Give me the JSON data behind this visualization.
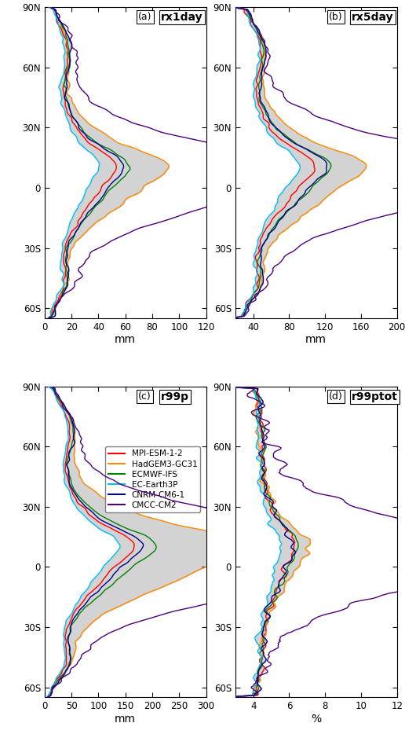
{
  "title": "",
  "subplots": [
    {
      "label": "(a)",
      "title": "rx1day",
      "xlabel": "mm",
      "xlim": [
        0,
        120
      ],
      "xticks": [
        0,
        20,
        40,
        60,
        80,
        100,
        120
      ]
    },
    {
      "label": "(b)",
      "title": "rx5day",
      "xlabel": "mm",
      "xlim": [
        20,
        200
      ],
      "xticks": [
        40,
        80,
        120,
        160,
        200
      ]
    },
    {
      "label": "(c)",
      "title": "r99p",
      "xlabel": "mm",
      "xlim": [
        0,
        300
      ],
      "xticks": [
        0,
        50,
        100,
        150,
        200,
        250,
        300
      ]
    },
    {
      "label": "(d)",
      "title": "r99ptot",
      "xlabel": "%",
      "xlim": [
        3,
        12
      ],
      "xticks": [
        4,
        6,
        8,
        10,
        12
      ]
    }
  ],
  "ylim": [
    -65,
    90
  ],
  "yticks": [
    -60,
    -30,
    0,
    30,
    60,
    90
  ],
  "yticklabels": [
    "60S",
    "30S",
    "0",
    "30N",
    "60N",
    "90N"
  ],
  "models": [
    {
      "name": "MPI-ESM-1-2",
      "color": "#ff0000"
    },
    {
      "name": "HadGEM3-GC31",
      "color": "#ff8c00"
    },
    {
      "name": "ECMWF-IFS",
      "color": "#008000"
    },
    {
      "name": "EC-Earth3P",
      "color": "#00bfff"
    },
    {
      "name": "CNRM-CM6-1",
      "color": "#00008b"
    },
    {
      "name": "CMCC-CM2",
      "color": "#4b0082"
    }
  ],
  "background_color": "#ffffff",
  "shade_color": "#c8c8c8"
}
